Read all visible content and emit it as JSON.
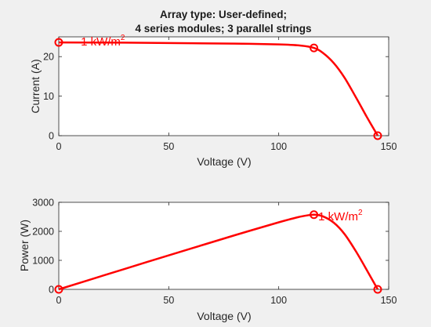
{
  "figure": {
    "title_line1": "Array type: User-defined;",
    "title_line2": "4 series modules; 3 parallel strings",
    "background": "#f0f0f0",
    "curve_color": "#ff0000"
  },
  "chart_data": [
    {
      "type": "line",
      "title": "Array type: User-defined; 4 series modules; 3 parallel strings",
      "xlabel": "Voltage (V)",
      "ylabel": "Current (A)",
      "xlim": [
        0,
        150
      ],
      "ylim": [
        0,
        25
      ],
      "xticks": [
        0,
        50,
        100,
        150
      ],
      "yticks": [
        0,
        10,
        20
      ],
      "grid": false,
      "series": [
        {
          "name": "1 kW/m2",
          "x": [
            0,
            20,
            40,
            60,
            80,
            100,
            110,
            116,
            120,
            125,
            130,
            135,
            140,
            145
          ],
          "y": [
            23.6,
            23.55,
            23.5,
            23.4,
            23.3,
            23.1,
            22.8,
            22.2,
            21.0,
            18.4,
            14.6,
            9.8,
            4.8,
            0
          ]
        }
      ],
      "markers": [
        {
          "x": 0,
          "y": 23.6
        },
        {
          "x": 116,
          "y": 22.2
        },
        {
          "x": 145,
          "y": 0
        }
      ],
      "annotation": {
        "text": "1 kW/m",
        "superscript": "2",
        "x": 10,
        "y": 23.8
      }
    },
    {
      "type": "line",
      "xlabel": "Voltage (V)",
      "ylabel": "Power (W)",
      "xlim": [
        0,
        150
      ],
      "ylim": [
        0,
        3000
      ],
      "xticks": [
        0,
        50,
        100,
        150
      ],
      "yticks": [
        0,
        1000,
        2000,
        3000
      ],
      "grid": false,
      "series": [
        {
          "name": "1 kW/m2",
          "x": [
            0,
            20,
            40,
            60,
            80,
            100,
            110,
            116,
            120,
            125,
            130,
            135,
            140,
            145
          ],
          "y": [
            0,
            471,
            940,
            1404,
            1864,
            2310,
            2508,
            2575,
            2520,
            2300,
            1898,
            1323,
            672,
            0
          ]
        }
      ],
      "markers": [
        {
          "x": 0,
          "y": 0
        },
        {
          "x": 116,
          "y": 2575
        },
        {
          "x": 145,
          "y": 0
        }
      ],
      "annotation": {
        "text": "1 kW/m",
        "superscript": "2",
        "x": 118,
        "y": 2520
      }
    }
  ]
}
